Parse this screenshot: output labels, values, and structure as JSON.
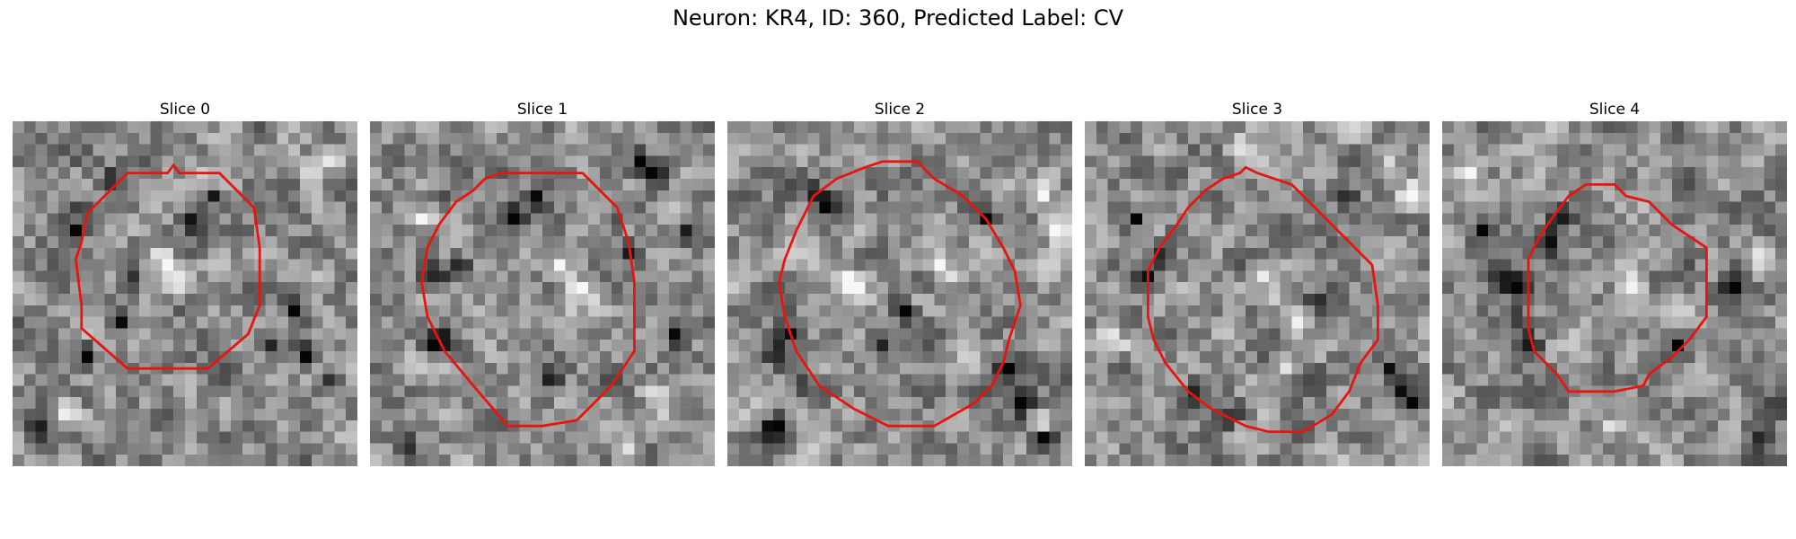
{
  "figure": {
    "title": "Neuron: KR4, ID: 360, Predicted Label: CV"
  },
  "panels": [
    {
      "label": "Slice 0",
      "contour": [
        [
          13.5,
          4.5
        ],
        [
          14,
          3.8
        ],
        [
          14.5,
          4.5
        ],
        [
          18,
          4.5
        ],
        [
          21,
          7.5
        ],
        [
          21.5,
          11
        ],
        [
          21.5,
          16
        ],
        [
          20.5,
          18.5
        ],
        [
          17,
          21.5
        ],
        [
          10,
          21.5
        ],
        [
          6,
          18
        ],
        [
          6,
          16
        ],
        [
          5.5,
          12
        ],
        [
          6,
          10.5
        ],
        [
          6.5,
          8
        ],
        [
          8,
          6.5
        ],
        [
          10,
          4.5
        ]
      ],
      "dark_spots": [
        [
          8,
          5
        ],
        [
          17,
          6
        ],
        [
          15,
          8
        ],
        [
          6,
          7
        ],
        [
          5,
          9
        ],
        [
          10,
          13
        ],
        [
          24,
          16
        ],
        [
          25,
          20
        ],
        [
          22,
          19
        ],
        [
          6,
          20
        ],
        [
          2,
          26
        ],
        [
          27,
          22
        ],
        [
          9,
          17
        ]
      ],
      "bright_spots": [
        [
          12,
          11
        ],
        [
          13,
          12
        ],
        [
          14,
          14
        ],
        [
          25,
          4
        ],
        [
          27,
          3
        ],
        [
          26,
          7
        ],
        [
          4,
          25
        ],
        [
          15,
          24
        ],
        [
          11,
          13
        ]
      ]
    },
    {
      "label": "Slice 1",
      "contour": [
        [
          11.5,
          4.5
        ],
        [
          18.5,
          4.5
        ],
        [
          21.5,
          7.5
        ],
        [
          22.5,
          10.5
        ],
        [
          23,
          14
        ],
        [
          23,
          20
        ],
        [
          21,
          23
        ],
        [
          20,
          24
        ],
        [
          18,
          26
        ],
        [
          15,
          26.5
        ],
        [
          12,
          26.5
        ],
        [
          9,
          23
        ],
        [
          6.5,
          20
        ],
        [
          5,
          17
        ],
        [
          4.5,
          14
        ],
        [
          5,
          11
        ],
        [
          6,
          9
        ],
        [
          7.5,
          7
        ],
        [
          9,
          6
        ],
        [
          10,
          5
        ]
      ],
      "dark_spots": [
        [
          6,
          6
        ],
        [
          7,
          12
        ],
        [
          5,
          13
        ],
        [
          6,
          18
        ],
        [
          5,
          19
        ],
        [
          22,
          11
        ],
        [
          21,
          8
        ],
        [
          14,
          6
        ],
        [
          12,
          8
        ],
        [
          23,
          3
        ],
        [
          24,
          4
        ],
        [
          27,
          9
        ],
        [
          15,
          22
        ],
        [
          26,
          18
        ],
        [
          3,
          28
        ]
      ],
      "bright_spots": [
        [
          18,
          14
        ],
        [
          17,
          15
        ],
        [
          19,
          16
        ],
        [
          4,
          8
        ],
        [
          3,
          20
        ],
        [
          24,
          23
        ],
        [
          25,
          25
        ],
        [
          22,
          28
        ],
        [
          16,
          12
        ]
      ]
    },
    {
      "label": "Slice 2",
      "contour": [
        [
          13.5,
          3.5
        ],
        [
          16.5,
          3.5
        ],
        [
          18,
          5
        ],
        [
          20.5,
          6.5
        ],
        [
          22.5,
          8.5
        ],
        [
          24,
          11
        ],
        [
          25,
          13
        ],
        [
          25.5,
          16
        ],
        [
          24.5,
          19
        ],
        [
          24,
          21
        ],
        [
          23,
          23
        ],
        [
          21.5,
          24.5
        ],
        [
          18,
          26.5
        ],
        [
          14,
          26.5
        ],
        [
          11,
          25
        ],
        [
          8,
          23
        ],
        [
          6,
          20
        ],
        [
          5,
          17
        ],
        [
          4.5,
          14
        ],
        [
          5,
          12
        ],
        [
          6,
          9.5
        ],
        [
          7.5,
          6.5
        ],
        [
          9.5,
          5
        ],
        [
          12,
          4
        ]
      ],
      "dark_spots": [
        [
          7,
          6
        ],
        [
          8,
          7
        ],
        [
          5,
          18
        ],
        [
          4,
          20
        ],
        [
          6,
          22
        ],
        [
          24,
          21
        ],
        [
          25,
          24
        ],
        [
          3,
          27
        ],
        [
          4,
          26
        ],
        [
          15,
          16
        ],
        [
          13,
          19
        ],
        [
          22,
          8
        ],
        [
          27,
          27
        ]
      ],
      "bright_spots": [
        [
          10,
          13
        ],
        [
          11,
          14
        ],
        [
          18,
          12
        ],
        [
          19,
          13
        ],
        [
          16,
          15
        ],
        [
          27,
          6
        ],
        [
          28,
          9
        ],
        [
          27,
          26
        ]
      ]
    },
    {
      "label": "Slice 3",
      "contour": [
        [
          13.5,
          4.5
        ],
        [
          14,
          4
        ],
        [
          15,
          4.5
        ],
        [
          18,
          5.5
        ],
        [
          21,
          8.5
        ],
        [
          23,
          10.5
        ],
        [
          25,
          12.5
        ],
        [
          25.5,
          16
        ],
        [
          25.5,
          19
        ],
        [
          24,
          21
        ],
        [
          23,
          23.5
        ],
        [
          21.5,
          25.5
        ],
        [
          19,
          27
        ],
        [
          16,
          27
        ],
        [
          14,
          26.5
        ],
        [
          11,
          25
        ],
        [
          9,
          23.5
        ],
        [
          7,
          21
        ],
        [
          6,
          19
        ],
        [
          5.5,
          17
        ],
        [
          5.5,
          13
        ],
        [
          6.5,
          11
        ],
        [
          8,
          9
        ],
        [
          9,
          7.5
        ],
        [
          10.5,
          6
        ],
        [
          12,
          5
        ]
      ],
      "dark_spots": [
        [
          6,
          11
        ],
        [
          5,
          13
        ],
        [
          9,
          23
        ],
        [
          12,
          25
        ],
        [
          26,
          21
        ],
        [
          27,
          23
        ],
        [
          28,
          24
        ],
        [
          4,
          8
        ],
        [
          22,
          6
        ],
        [
          20,
          15
        ]
      ],
      "bright_spots": [
        [
          15,
          13
        ],
        [
          16,
          15
        ],
        [
          18,
          17
        ],
        [
          20,
          19
        ],
        [
          1,
          18
        ],
        [
          2,
          19
        ],
        [
          26,
          3
        ],
        [
          28,
          6
        ],
        [
          13,
          2
        ],
        [
          17,
          21
        ]
      ]
    },
    {
      "label": "Slice 4",
      "contour": [
        [
          12.5,
          5.5
        ],
        [
          15,
          5.5
        ],
        [
          16,
          6.5
        ],
        [
          18,
          7
        ],
        [
          20,
          9
        ],
        [
          23,
          11
        ],
        [
          23,
          17
        ],
        [
          21.5,
          19
        ],
        [
          20,
          20.5
        ],
        [
          18,
          22
        ],
        [
          17.5,
          23
        ],
        [
          15,
          23.5
        ],
        [
          11,
          23.5
        ],
        [
          10,
          22
        ],
        [
          8,
          20
        ],
        [
          7.5,
          18
        ],
        [
          7.5,
          12
        ],
        [
          8.5,
          10
        ],
        [
          9.5,
          8.5
        ],
        [
          11,
          6.5
        ]
      ],
      "dark_spots": [
        [
          5,
          13
        ],
        [
          6,
          14
        ],
        [
          6,
          17
        ],
        [
          7,
          19
        ],
        [
          9,
          10
        ],
        [
          10,
          8
        ],
        [
          20,
          19
        ],
        [
          27,
          27
        ],
        [
          3,
          9
        ],
        [
          25,
          14
        ]
      ],
      "bright_spots": [
        [
          15,
          12
        ],
        [
          16,
          14
        ],
        [
          2,
          4
        ],
        [
          3,
          6
        ],
        [
          27,
          11
        ],
        [
          25,
          24
        ],
        [
          14,
          26
        ]
      ]
    }
  ]
}
